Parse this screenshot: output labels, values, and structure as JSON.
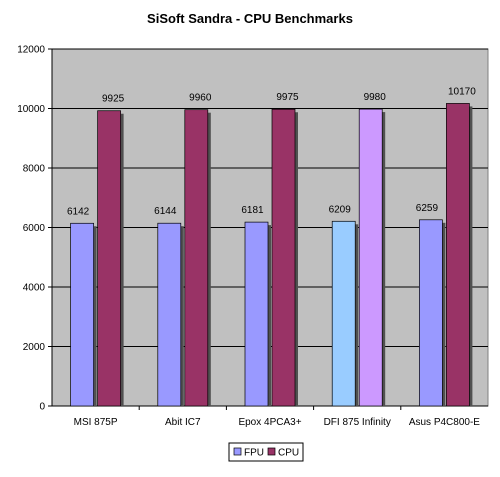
{
  "chart_data": {
    "type": "bar",
    "title": "SiSoft Sandra - CPU Benchmarks",
    "xlabel": "",
    "ylabel": "",
    "categories": [
      "MSI 875P",
      "Abit IC7",
      "Epox 4PCA3+",
      "DFI 875 Infinity",
      "Asus P4C800-E"
    ],
    "series": [
      {
        "name": "FPU",
        "values": [
          6142,
          6144,
          6181,
          6209,
          6259
        ]
      },
      {
        "name": "CPU",
        "values": [
          9925,
          9960,
          9975,
          9980,
          10170
        ]
      }
    ],
    "ylim": [
      0,
      12000
    ],
    "yticks": [
      0,
      2000,
      4000,
      6000,
      8000,
      10000,
      12000
    ],
    "grid": true,
    "legend_position": "bottom",
    "colors": {
      "plot_background": "#c0c0c0",
      "fpu": "#9999ff",
      "cpu": "#993366",
      "dfi_fpu": "#99ccff",
      "dfi_cpu": "#cc99ff"
    }
  }
}
